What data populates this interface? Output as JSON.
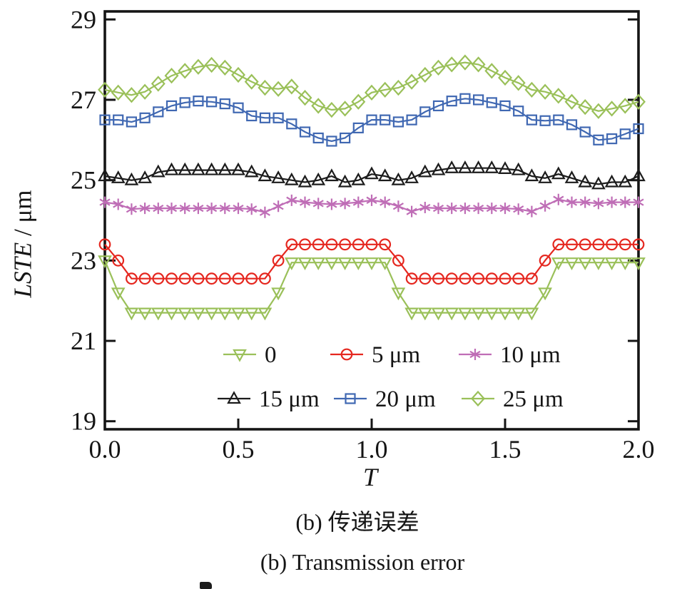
{
  "captions": {
    "zh": "(b) 传递误差",
    "en": "(b) Transmission error"
  },
  "chart_data": {
    "type": "line",
    "title": "",
    "xlabel": "T",
    "ylabel": "LSTE / μm",
    "ylabel_italic": "LSTE",
    "ylabel_suffix": " / μm",
    "xlim": [
      0,
      2
    ],
    "ylim": [
      18.8,
      29.2
    ],
    "xticks": [
      "0.0",
      "0.5",
      "1.0",
      "1.5",
      "2.0"
    ],
    "xtick_values": [
      0,
      0.5,
      1,
      1.5,
      2
    ],
    "yticks": [
      19,
      21,
      23,
      25,
      27,
      29
    ],
    "grid": false,
    "legend_position": "inside-bottom",
    "frame_color": "#151515",
    "x": [
      0,
      0.05,
      0.1,
      0.15,
      0.2,
      0.25,
      0.3,
      0.35,
      0.4,
      0.45,
      0.5,
      0.55,
      0.6,
      0.65,
      0.7,
      0.75,
      0.8,
      0.85,
      0.9,
      0.95,
      1,
      1.05,
      1.1,
      1.15,
      1.2,
      1.25,
      1.3,
      1.35,
      1.4,
      1.45,
      1.5,
      1.55,
      1.6,
      1.65,
      1.7,
      1.75,
      1.8,
      1.85,
      1.9,
      1.95,
      2
    ],
    "series": [
      {
        "name": "0",
        "marker": "triangle-down",
        "color": "#9ac059",
        "values": [
          23,
          22.2,
          21.7,
          21.7,
          21.7,
          21.7,
          21.7,
          21.7,
          21.7,
          21.7,
          21.7,
          21.7,
          21.7,
          22.2,
          22.95,
          22.95,
          22.95,
          22.95,
          22.95,
          22.95,
          22.95,
          22.95,
          22.2,
          21.7,
          21.7,
          21.7,
          21.7,
          21.7,
          21.7,
          21.7,
          21.7,
          21.7,
          21.7,
          22.2,
          22.95,
          22.95,
          22.95,
          22.95,
          22.95,
          22.95,
          22.95
        ]
      },
      {
        "name": "5 μm",
        "marker": "circle",
        "color": "#e5271f",
        "values": [
          23.4,
          23,
          22.55,
          22.55,
          22.55,
          22.55,
          22.55,
          22.55,
          22.55,
          22.55,
          22.55,
          22.55,
          22.55,
          23,
          23.4,
          23.4,
          23.4,
          23.4,
          23.4,
          23.4,
          23.4,
          23.4,
          23,
          22.55,
          22.55,
          22.55,
          22.55,
          22.55,
          22.55,
          22.55,
          22.55,
          22.55,
          22.55,
          23,
          23.4,
          23.4,
          23.4,
          23.4,
          23.4,
          23.4,
          23.4
        ]
      },
      {
        "name": "10 μm",
        "marker": "asterisk",
        "color": "#bf6db6",
        "values": [
          24.45,
          24.4,
          24.28,
          24.3,
          24.3,
          24.3,
          24.3,
          24.3,
          24.3,
          24.3,
          24.3,
          24.28,
          24.2,
          24.35,
          24.5,
          24.45,
          24.42,
          24.4,
          24.42,
          24.45,
          24.5,
          24.45,
          24.35,
          24.22,
          24.32,
          24.3,
          24.3,
          24.3,
          24.3,
          24.3,
          24.3,
          24.28,
          24.22,
          24.36,
          24.52,
          24.45,
          24.45,
          24.42,
          24.45,
          24.45,
          24.45
        ]
      },
      {
        "name": "15 μm",
        "marker": "triangle-up",
        "color": "#1c1c1c",
        "values": [
          25.1,
          25.05,
          25,
          25.05,
          25.2,
          25.25,
          25.25,
          25.25,
          25.25,
          25.25,
          25.25,
          25.2,
          25.1,
          25.05,
          25,
          24.95,
          25,
          25.1,
          24.95,
          25,
          25.15,
          25.1,
          25,
          25.05,
          25.2,
          25.25,
          25.3,
          25.3,
          25.3,
          25.3,
          25.28,
          25.25,
          25.1,
          25.05,
          25.15,
          25.05,
          24.95,
          24.9,
          24.95,
          24.95,
          25.1
        ]
      },
      {
        "name": "20 μm",
        "marker": "square",
        "color": "#4068b2",
        "values": [
          26.5,
          26.5,
          26.45,
          26.55,
          26.7,
          26.85,
          26.93,
          26.97,
          26.95,
          26.9,
          26.8,
          26.6,
          26.55,
          26.55,
          26.4,
          26.2,
          26.05,
          25.97,
          26.05,
          26.3,
          26.5,
          26.5,
          26.45,
          26.5,
          26.7,
          26.85,
          26.97,
          27.03,
          27,
          26.93,
          26.85,
          26.72,
          26.5,
          26.48,
          26.5,
          26.38,
          26.2,
          26,
          26.03,
          26.15,
          26.28
        ]
      },
      {
        "name": "25 μm",
        "marker": "diamond",
        "color": "#9ac059",
        "values": [
          27.25,
          27.18,
          27.12,
          27.2,
          27.4,
          27.6,
          27.72,
          27.82,
          27.87,
          27.8,
          27.62,
          27.45,
          27.3,
          27.27,
          27.33,
          27.05,
          26.85,
          26.75,
          26.78,
          26.95,
          27.18,
          27.25,
          27.3,
          27.45,
          27.62,
          27.8,
          27.88,
          27.93,
          27.88,
          27.72,
          27.55,
          27.42,
          27.25,
          27.2,
          27.1,
          26.95,
          26.82,
          26.72,
          26.78,
          26.85,
          26.95
        ]
      }
    ]
  }
}
